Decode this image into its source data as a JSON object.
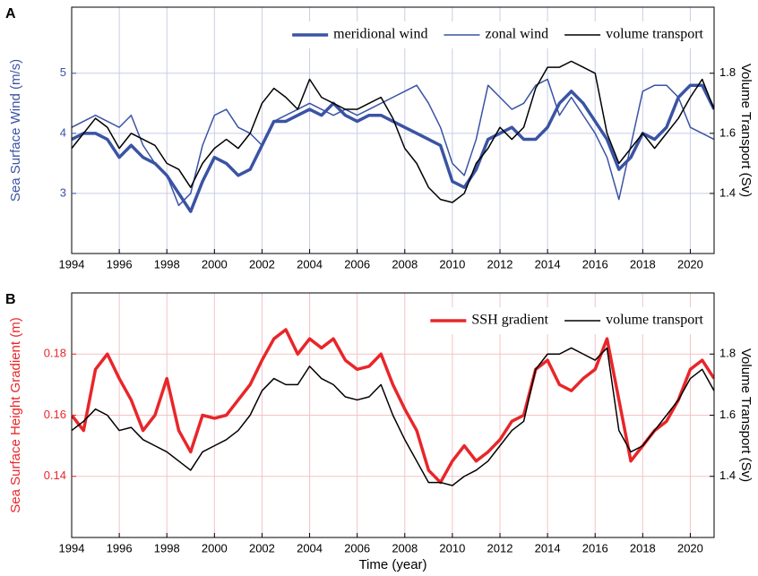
{
  "chart_data": [
    {
      "type": "line",
      "panel_label": "A",
      "ylabel": "Sea Surface Wind (m/s)",
      "y2label": "Volume Transport (Sv)",
      "y_color": "#3a53a4",
      "x": [
        1994,
        1994.5,
        1995,
        1995.5,
        1996,
        1996.5,
        1997,
        1997.5,
        1998,
        1998.5,
        1999,
        1999.5,
        2000,
        2000.5,
        2001,
        2001.5,
        2002,
        2002.5,
        2003,
        2003.5,
        2004,
        2004.5,
        2005,
        2005.5,
        2006,
        2006.5,
        2007,
        2007.5,
        2008,
        2008.5,
        2009,
        2009.5,
        2010,
        2010.5,
        2011,
        2011.5,
        2012,
        2012.5,
        2013,
        2013.5,
        2014,
        2014.5,
        2015,
        2015.5,
        2016,
        2016.5,
        2017,
        2017.5,
        2018,
        2018.5,
        2019,
        2019.5,
        2020,
        2020.5,
        2021
      ],
      "series": [
        {
          "name": "meridional wind",
          "color": "#3a53a4",
          "line_width": 3.5,
          "values": [
            3.9,
            4.0,
            4.0,
            3.9,
            3.6,
            3.8,
            3.6,
            3.5,
            3.3,
            3.0,
            2.7,
            3.2,
            3.6,
            3.5,
            3.3,
            3.4,
            3.8,
            4.2,
            4.2,
            4.3,
            4.4,
            4.3,
            4.5,
            4.3,
            4.2,
            4.3,
            4.3,
            4.2,
            4.1,
            4.0,
            3.9,
            3.8,
            3.2,
            3.1,
            3.4,
            3.9,
            4.0,
            4.1,
            3.9,
            3.9,
            4.1,
            4.5,
            4.7,
            4.5,
            4.2,
            3.9,
            3.4,
            3.6,
            4.0,
            3.9,
            4.1,
            4.6,
            4.8,
            4.8,
            4.4
          ]
        },
        {
          "name": "zonal wind",
          "color": "#3a53a4",
          "line_width": 1.5,
          "values": [
            4.1,
            4.2,
            4.3,
            4.2,
            4.1,
            4.3,
            3.8,
            3.5,
            3.3,
            2.8,
            3.0,
            3.8,
            4.3,
            4.4,
            4.1,
            4.0,
            3.8,
            4.2,
            4.3,
            4.4,
            4.5,
            4.4,
            4.3,
            4.4,
            4.3,
            4.4,
            4.5,
            4.6,
            4.7,
            4.8,
            4.5,
            4.1,
            3.5,
            3.3,
            3.9,
            4.8,
            4.6,
            4.4,
            4.5,
            4.8,
            4.9,
            4.3,
            4.6,
            4.3,
            4.0,
            3.6,
            2.9,
            3.8,
            4.7,
            4.8,
            4.8,
            4.6,
            4.1,
            4.0,
            3.9
          ]
        },
        {
          "name": "volume transport",
          "color": "#000000",
          "line_width": 1.5,
          "axis": "y2",
          "values": [
            1.55,
            1.6,
            1.65,
            1.62,
            1.55,
            1.6,
            1.58,
            1.56,
            1.5,
            1.48,
            1.42,
            1.5,
            1.55,
            1.58,
            1.55,
            1.6,
            1.7,
            1.75,
            1.72,
            1.68,
            1.78,
            1.72,
            1.7,
            1.68,
            1.68,
            1.7,
            1.72,
            1.65,
            1.55,
            1.5,
            1.42,
            1.38,
            1.37,
            1.4,
            1.5,
            1.55,
            1.62,
            1.58,
            1.62,
            1.75,
            1.82,
            1.82,
            1.84,
            1.82,
            1.8,
            1.6,
            1.5,
            1.55,
            1.6,
            1.55,
            1.6,
            1.65,
            1.72,
            1.78,
            1.68
          ]
        }
      ],
      "xlim": [
        1994,
        2021
      ],
      "xticks": [
        1994,
        1996,
        1998,
        2000,
        2002,
        2004,
        2006,
        2008,
        2010,
        2012,
        2014,
        2016,
        2018,
        2020
      ],
      "ylim": [
        2,
        6.1
      ],
      "yticks": [
        3,
        4,
        5
      ],
      "y2lim": [
        1.2,
        2.02
      ],
      "y2ticks": [
        1.4,
        1.6,
        1.8
      ],
      "grid": true,
      "grid_color": "#c9cde6",
      "legend": "top-right"
    },
    {
      "type": "line",
      "panel_label": "B",
      "ylabel": "Sea Surface Height Gradient (m)",
      "y2label": "Volume Transport (Sv)",
      "xlabel": "Time (year)",
      "y_color": "#e8262a",
      "x": [
        1994,
        1994.5,
        1995,
        1995.5,
        1996,
        1996.5,
        1997,
        1997.5,
        1998,
        1998.5,
        1999,
        1999.5,
        2000,
        2000.5,
        2001,
        2001.5,
        2002,
        2002.5,
        2003,
        2003.5,
        2004,
        2004.5,
        2005,
        2005.5,
        2006,
        2006.5,
        2007,
        2007.5,
        2008,
        2008.5,
        2009,
        2009.5,
        2010,
        2010.5,
        2011,
        2011.5,
        2012,
        2012.5,
        2013,
        2013.5,
        2014,
        2014.5,
        2015,
        2015.5,
        2016,
        2016.5,
        2017,
        2017.5,
        2018,
        2018.5,
        2019,
        2019.5,
        2020,
        2020.5,
        2021
      ],
      "series": [
        {
          "name": "SSH gradient",
          "color": "#e8262a",
          "line_width": 3.5,
          "values": [
            0.16,
            0.155,
            0.175,
            0.18,
            0.172,
            0.165,
            0.155,
            0.16,
            0.172,
            0.155,
            0.148,
            0.16,
            0.159,
            0.16,
            0.165,
            0.17,
            0.178,
            0.185,
            0.188,
            0.18,
            0.185,
            0.182,
            0.185,
            0.178,
            0.175,
            0.176,
            0.18,
            0.17,
            0.162,
            0.155,
            0.142,
            0.138,
            0.145,
            0.15,
            0.145,
            0.148,
            0.152,
            0.158,
            0.16,
            0.175,
            0.178,
            0.17,
            0.168,
            0.172,
            0.175,
            0.185,
            0.165,
            0.145,
            0.15,
            0.155,
            0.158,
            0.165,
            0.175,
            0.178,
            0.172
          ]
        },
        {
          "name": "volume transport",
          "color": "#000000",
          "line_width": 1.5,
          "axis": "y2",
          "values": [
            1.55,
            1.58,
            1.62,
            1.6,
            1.55,
            1.56,
            1.52,
            1.5,
            1.48,
            1.45,
            1.42,
            1.48,
            1.5,
            1.52,
            1.55,
            1.6,
            1.68,
            1.72,
            1.7,
            1.7,
            1.76,
            1.72,
            1.7,
            1.66,
            1.65,
            1.66,
            1.7,
            1.6,
            1.52,
            1.45,
            1.38,
            1.38,
            1.37,
            1.4,
            1.42,
            1.45,
            1.5,
            1.55,
            1.58,
            1.75,
            1.8,
            1.8,
            1.82,
            1.8,
            1.78,
            1.82,
            1.55,
            1.48,
            1.5,
            1.55,
            1.6,
            1.65,
            1.72,
            1.75,
            1.68
          ]
        }
      ],
      "xlim": [
        1994,
        2021
      ],
      "xticks": [
        1994,
        1996,
        1998,
        2000,
        2002,
        2004,
        2006,
        2008,
        2010,
        2012,
        2014,
        2016,
        2018,
        2020
      ],
      "ylim": [
        0.12,
        0.2
      ],
      "yticks": [
        0.14,
        0.16,
        0.18
      ],
      "y2lim": [
        1.2,
        2.0
      ],
      "y2ticks": [
        1.4,
        1.6,
        1.8
      ],
      "grid": true,
      "grid_color": "#f3c4c6",
      "legend": "top-right"
    }
  ]
}
